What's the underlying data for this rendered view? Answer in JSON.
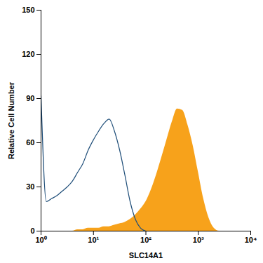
{
  "chart_data": {
    "type": "line",
    "x_label": "SLC14A1",
    "y_label": "Relative Cell Number",
    "log": "x",
    "xlim": [
      1,
      10000
    ],
    "xticks": [
      {
        "value": 1,
        "label": "10⁰"
      },
      {
        "value": 10,
        "label": "10¹"
      },
      {
        "value": 100,
        "label": "10²"
      },
      {
        "value": 1000,
        "label": "10³"
      },
      {
        "value": 10000,
        "label": "10⁴"
      }
    ],
    "ylim": [
      0,
      150
    ],
    "yticks": [
      0,
      30,
      60,
      90,
      120,
      150
    ],
    "x": [
      1,
      1.26,
      1.58,
      2,
      2.51,
      3.16,
      3.98,
      5.01,
      6.31,
      7.94,
      10,
      12.6,
      15.8,
      20,
      25.1,
      31.6,
      39.8,
      50.1,
      63.1,
      79.4,
      100,
      126,
      158,
      200,
      251,
      316,
      398,
      501,
      631,
      794,
      1000,
      1259,
      1585,
      1995,
      2512,
      3162
    ],
    "series": [
      {
        "type": "line",
        "color": "#1f4e79",
        "values": [
          92,
          20,
          22,
          24,
          27,
          30,
          34,
          40,
          46,
          55,
          62,
          68,
          73,
          76,
          68,
          55,
          38,
          20,
          8,
          2,
          0,
          null,
          null,
          null,
          null,
          null,
          null,
          null,
          null,
          null,
          null,
          null,
          null,
          null,
          null,
          null
        ]
      },
      {
        "type": "area",
        "color": "#f7a21b",
        "values": [
          null,
          null,
          null,
          null,
          null,
          null,
          null,
          1,
          1,
          2,
          2,
          2,
          3,
          3,
          4,
          5,
          6,
          8,
          11,
          15,
          20,
          28,
          38,
          50,
          62,
          74,
          83,
          82,
          72,
          58,
          40,
          22,
          9,
          2,
          0,
          null
        ]
      }
    ]
  }
}
